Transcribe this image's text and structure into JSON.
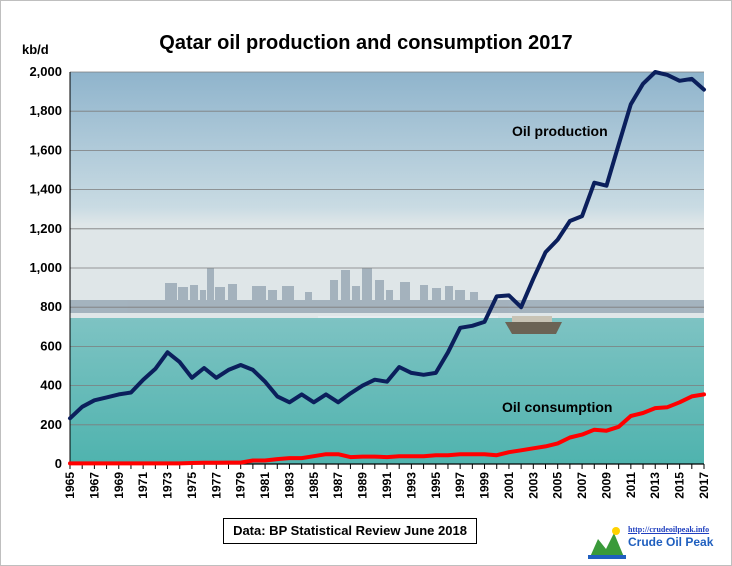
{
  "chart_data": {
    "type": "line",
    "title": "Qatar oil production and consumption 2017",
    "ylabel": "kb/d",
    "xlabel": "",
    "ylim": [
      0,
      2000
    ],
    "yticks": [
      0,
      200,
      400,
      600,
      800,
      1000,
      1200,
      1400,
      1600,
      1800,
      2000
    ],
    "ytick_labels": [
      "0",
      "200",
      "400",
      "600",
      "800",
      "1,000",
      "1,200",
      "1,400",
      "1,600",
      "1,800",
      "2,000"
    ],
    "x": [
      1965,
      1966,
      1967,
      1968,
      1969,
      1970,
      1971,
      1972,
      1973,
      1974,
      1975,
      1976,
      1977,
      1978,
      1979,
      1980,
      1981,
      1982,
      1983,
      1984,
      1985,
      1986,
      1987,
      1988,
      1989,
      1990,
      1991,
      1992,
      1993,
      1994,
      1995,
      1996,
      1997,
      1998,
      1999,
      2000,
      2001,
      2002,
      2003,
      2004,
      2005,
      2006,
      2007,
      2008,
      2009,
      2010,
      2011,
      2012,
      2013,
      2014,
      2015,
      2016,
      2017
    ],
    "xtick_labels": [
      "1965",
      "1967",
      "1969",
      "1971",
      "1973",
      "1975",
      "1977",
      "1979",
      "1981",
      "1983",
      "1985",
      "1987",
      "1989",
      "1991",
      "1993",
      "1995",
      "1997",
      "1999",
      "2001",
      "2003",
      "2005",
      "2007",
      "2009",
      "2011",
      "2013",
      "2015",
      "2017"
    ],
    "grid": true,
    "series": [
      {
        "name": "Oil production",
        "color": "#0b1f5c",
        "values": [
          233,
          292,
          325,
          340,
          355,
          365,
          430,
          485,
          570,
          520,
          440,
          490,
          440,
          480,
          505,
          480,
          420,
          345,
          315,
          355,
          315,
          355,
          315,
          360,
          400,
          430,
          420,
          495,
          465,
          455,
          465,
          570,
          695,
          705,
          725,
          855,
          860,
          800,
          945,
          1080,
          1145,
          1240,
          1265,
          1435,
          1420,
          1630,
          1835,
          1940,
          2000,
          1985,
          1955,
          1965,
          1910
        ]
      },
      {
        "name": "Oil consumption",
        "color": "#ff0000",
        "values": [
          3,
          3,
          3,
          3,
          3,
          3,
          3,
          3,
          3,
          3,
          5,
          6,
          6,
          7,
          7,
          18,
          18,
          25,
          30,
          30,
          40,
          50,
          50,
          35,
          38,
          38,
          35,
          40,
          40,
          40,
          45,
          45,
          50,
          50,
          50,
          45,
          60,
          70,
          80,
          90,
          105,
          135,
          150,
          175,
          170,
          190,
          245,
          260,
          285,
          290,
          315,
          345,
          355
        ]
      }
    ],
    "annotations": [
      "Oil production",
      "Oil consumption"
    ],
    "background_color": "#5fb8b5"
  },
  "source_note": "Data: BP Statistical Review June 2018",
  "logo": {
    "url_text": "http://crudeoilpeak.info",
    "name": "Crude Oil Peak"
  }
}
